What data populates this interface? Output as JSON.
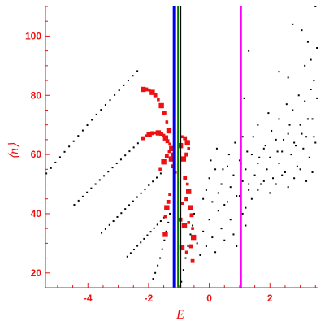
{
  "chart_data": {
    "type": "scatter",
    "xlabel": "E",
    "ylabel": "⟨n⟩",
    "xlim": [
      -5.4,
      3.6
    ],
    "ylim": [
      15,
      110
    ],
    "x_ticks": [
      {
        "value": -4,
        "label": "-4"
      },
      {
        "value": -2,
        "label": "-2"
      },
      {
        "value": 0,
        "label": "0"
      },
      {
        "value": 2,
        "label": "2"
      }
    ],
    "y_ticks": [
      {
        "value": 20,
        "label": "20"
      },
      {
        "value": 40,
        "label": "40"
      },
      {
        "value": 60,
        "label": "60"
      },
      {
        "value": 80,
        "label": "80"
      },
      {
        "value": 100,
        "label": "100"
      }
    ],
    "vertical_lines": [
      {
        "x": -1.15,
        "color": "#0000ee"
      },
      {
        "x": -1.03,
        "color": "#007700"
      },
      {
        "x": -0.95,
        "color": "#000000"
      },
      {
        "x": 1.05,
        "color": "#ff00ff"
      }
    ],
    "colors": {
      "axis": "#ee1111",
      "black_points": "#000000",
      "red_points": "#ee1111"
    },
    "series": [
      {
        "color": "#000000",
        "points": [
          [
            -5.37,
            53.6
          ],
          [
            -5.22,
            55.4
          ],
          [
            -5.07,
            57.3
          ],
          [
            -4.92,
            59.1
          ],
          [
            -4.77,
            60.9
          ],
          [
            -4.62,
            62.7
          ],
          [
            -4.47,
            64.5
          ],
          [
            -4.32,
            66.3
          ],
          [
            -4.17,
            68.1
          ],
          [
            -4.02,
            69.9
          ],
          [
            -3.87,
            71.7
          ],
          [
            -3.72,
            73.5
          ],
          [
            -3.57,
            75.1
          ],
          [
            -3.42,
            76.8
          ],
          [
            -3.27,
            78.4
          ],
          [
            -3.12,
            80.1
          ],
          [
            -2.97,
            81.7
          ],
          [
            -2.82,
            83.4
          ],
          [
            -2.67,
            85.0
          ],
          [
            -2.52,
            86.6
          ],
          [
            -2.37,
            88.2
          ],
          [
            -4.45,
            43.0
          ],
          [
            -4.31,
            44.4
          ],
          [
            -4.17,
            45.8
          ],
          [
            -4.03,
            47.2
          ],
          [
            -3.89,
            48.6
          ],
          [
            -3.75,
            50.0
          ],
          [
            -3.61,
            51.4
          ],
          [
            -3.47,
            52.8
          ],
          [
            -3.33,
            54.2
          ],
          [
            -3.19,
            55.6
          ],
          [
            -3.05,
            57.0
          ],
          [
            -2.91,
            58.3
          ],
          [
            -2.77,
            59.7
          ],
          [
            -2.63,
            61.1
          ],
          [
            -2.49,
            62.4
          ],
          [
            -2.35,
            63.8
          ],
          [
            -2.21,
            65.2
          ],
          [
            -3.55,
            33.5
          ],
          [
            -3.42,
            34.8
          ],
          [
            -3.29,
            36.2
          ],
          [
            -3.16,
            37.5
          ],
          [
            -3.03,
            38.9
          ],
          [
            -2.9,
            40.2
          ],
          [
            -2.77,
            41.6
          ],
          [
            -2.64,
            42.9
          ],
          [
            -2.51,
            44.2
          ],
          [
            -2.38,
            45.6
          ],
          [
            -2.25,
            46.9
          ],
          [
            -2.12,
            48.2
          ],
          [
            -1.99,
            49.6
          ],
          [
            -1.86,
            50.9
          ],
          [
            -1.73,
            52.2
          ],
          [
            -1.6,
            53.6
          ],
          [
            -2.7,
            25.5
          ],
          [
            -2.59,
            26.7
          ],
          [
            -2.48,
            27.9
          ],
          [
            -2.37,
            29.1
          ],
          [
            -2.26,
            30.3
          ],
          [
            -2.15,
            31.5
          ],
          [
            -2.04,
            32.7
          ],
          [
            -1.93,
            33.9
          ],
          [
            -1.82,
            35.1
          ],
          [
            -1.71,
            36.3
          ],
          [
            -1.6,
            37.5
          ],
          [
            -1.49,
            38.7
          ],
          [
            -1.85,
            18.0
          ],
          [
            -1.78,
            20.0
          ],
          [
            -1.7,
            22.5
          ],
          [
            -1.62,
            25.0
          ],
          [
            -1.55,
            28.0
          ],
          [
            -1.48,
            31.0
          ],
          [
            -1.42,
            34.0
          ],
          [
            -1.35,
            37.0
          ],
          [
            -1.3,
            40.0
          ],
          [
            -0.92,
            17.0
          ],
          [
            -0.85,
            21.0
          ],
          [
            -0.78,
            25.0
          ],
          [
            -0.7,
            29.0
          ],
          [
            -0.62,
            33.0
          ],
          [
            -0.55,
            36.0
          ],
          [
            -0.5,
            40.0
          ],
          [
            -0.4,
            30.0
          ],
          [
            -0.3,
            26.0
          ],
          [
            -0.2,
            34.0
          ],
          [
            -0.1,
            29.0
          ],
          [
            0.0,
            38.0
          ],
          [
            0.1,
            32.0
          ],
          [
            0.2,
            27.0
          ],
          [
            0.3,
            41.0
          ],
          [
            0.4,
            35.0
          ],
          [
            0.5,
            31.0
          ],
          [
            0.6,
            44.0
          ],
          [
            0.7,
            38.0
          ],
          [
            0.8,
            33.0
          ],
          [
            0.9,
            29.0
          ],
          [
            1.0,
            46.0
          ],
          [
            1.1,
            40.0
          ],
          [
            1.2,
            36.0
          ],
          [
            1.3,
            50.0
          ],
          [
            -0.2,
            45.0
          ],
          [
            -0.1,
            48.0
          ],
          [
            0.0,
            52.0
          ],
          [
            0.1,
            44.0
          ],
          [
            0.2,
            55.0
          ],
          [
            0.3,
            47.0
          ],
          [
            0.4,
            50.0
          ],
          [
            0.5,
            43.0
          ],
          [
            0.6,
            56.0
          ],
          [
            0.7,
            49.0
          ],
          [
            0.8,
            53.0
          ],
          [
            0.9,
            46.0
          ],
          [
            1.0,
            58.0
          ],
          [
            1.1,
            51.0
          ],
          [
            1.2,
            55.0
          ],
          [
            1.3,
            48.0
          ],
          [
            1.4,
            60.0
          ],
          [
            1.5,
            53.0
          ],
          [
            1.6,
            57.0
          ],
          [
            1.7,
            50.0
          ],
          [
            1.8,
            62.0
          ],
          [
            1.9,
            55.0
          ],
          [
            2.0,
            59.0
          ],
          [
            2.1,
            52.0
          ],
          [
            2.2,
            65.0
          ],
          [
            2.3,
            57.0
          ],
          [
            2.4,
            61.0
          ],
          [
            2.5,
            54.0
          ],
          [
            2.6,
            67.0
          ],
          [
            2.7,
            60.0
          ],
          [
            2.8,
            64.0
          ],
          [
            2.9,
            56.0
          ],
          [
            3.0,
            70.0
          ],
          [
            3.1,
            62.0
          ],
          [
            3.2,
            66.0
          ],
          [
            3.3,
            59.0
          ],
          [
            3.4,
            72.0
          ],
          [
            3.5,
            64.0
          ],
          [
            0.05,
            58.0
          ],
          [
            0.25,
            62.0
          ],
          [
            0.45,
            55.0
          ],
          [
            0.65,
            60.0
          ],
          [
            0.85,
            64.0
          ],
          [
            1.05,
            57.0
          ],
          [
            1.25,
            61.0
          ],
          [
            1.45,
            66.0
          ],
          [
            1.65,
            59.0
          ],
          [
            1.85,
            63.0
          ],
          [
            2.05,
            68.0
          ],
          [
            2.25,
            61.0
          ],
          [
            2.45,
            65.0
          ],
          [
            2.65,
            70.0
          ],
          [
            2.85,
            63.0
          ],
          [
            3.05,
            67.0
          ],
          [
            3.25,
            72.0
          ],
          [
            3.45,
            66.0
          ],
          [
            1.2,
            42.0
          ],
          [
            1.4,
            45.0
          ],
          [
            1.6,
            48.0
          ],
          [
            1.8,
            51.0
          ],
          [
            2.0,
            47.0
          ],
          [
            2.2,
            50.0
          ],
          [
            2.4,
            53.0
          ],
          [
            2.6,
            49.0
          ],
          [
            2.8,
            52.0
          ],
          [
            3.0,
            55.0
          ],
          [
            3.2,
            51.0
          ],
          [
            3.4,
            54.0
          ],
          [
            1.1,
            66.0
          ],
          [
            1.6,
            70.0
          ],
          [
            1.95,
            74.0
          ],
          [
            2.3,
            72.0
          ],
          [
            2.55,
            77.0
          ],
          [
            2.75,
            75.0
          ],
          [
            2.95,
            80.0
          ],
          [
            3.15,
            78.0
          ],
          [
            3.35,
            82.0
          ],
          [
            3.55,
            79.0
          ],
          [
            1.15,
            79.0
          ],
          [
            2.3,
            88.0
          ],
          [
            2.6,
            86.0
          ],
          [
            3.15,
            90.0
          ],
          [
            3.35,
            92.0
          ],
          [
            3.45,
            85.0
          ],
          [
            3.55,
            96.0
          ],
          [
            2.75,
            104.0
          ],
          [
            3.05,
            102.0
          ],
          [
            3.25,
            98.0
          ],
          [
            3.5,
            110.0
          ],
          [
            1.3,
            95.0
          ]
        ]
      },
      {
        "color": "#ee1111",
        "points": [
          [
            -2.18,
            82.0
          ],
          [
            -2.08,
            82.0
          ],
          [
            -1.98,
            81.8
          ],
          [
            -1.88,
            81.0
          ],
          [
            -1.78,
            80.0
          ],
          [
            -1.68,
            78.5
          ],
          [
            -1.58,
            76.5
          ],
          [
            -1.48,
            74.0
          ],
          [
            -1.4,
            71.0
          ],
          [
            -1.33,
            68.0
          ],
          [
            -2.18,
            65.5
          ],
          [
            -2.08,
            66.3
          ],
          [
            -1.98,
            66.8
          ],
          [
            -1.88,
            67.2
          ],
          [
            -1.78,
            67.3
          ],
          [
            -1.68,
            67.3
          ],
          [
            -1.58,
            67.0
          ],
          [
            -1.5,
            66.5
          ],
          [
            -1.44,
            65.6
          ],
          [
            -1.38,
            64.5
          ],
          [
            -1.3,
            63.5
          ],
          [
            -1.24,
            62.0
          ],
          [
            -1.2,
            60.0
          ],
          [
            -1.62,
            55.0
          ],
          [
            -1.5,
            57.5
          ],
          [
            -1.4,
            59.5
          ],
          [
            -1.32,
            61.0
          ],
          [
            -1.25,
            58.5
          ],
          [
            -1.2,
            56.0
          ],
          [
            -1.12,
            54.0
          ],
          [
            -0.85,
            58.5
          ],
          [
            -0.75,
            60.0
          ],
          [
            -0.68,
            62.0
          ],
          [
            -0.72,
            64.0
          ],
          [
            -0.8,
            65.5
          ],
          [
            -0.9,
            66.0
          ],
          [
            -0.95,
            63.0
          ],
          [
            -0.8,
            52.0
          ],
          [
            -0.72,
            50.0
          ],
          [
            -0.68,
            47.5
          ],
          [
            -0.75,
            45.0
          ],
          [
            -0.88,
            43.5
          ],
          [
            -0.62,
            42.0
          ],
          [
            -0.58,
            39.5
          ],
          [
            -0.68,
            37.0
          ],
          [
            -0.82,
            36.0
          ],
          [
            -0.95,
            38.0
          ],
          [
            -0.55,
            35.0
          ],
          [
            -0.52,
            32.0
          ],
          [
            -0.6,
            29.0
          ],
          [
            -0.75,
            27.0
          ],
          [
            -0.9,
            28.5
          ],
          [
            -0.55,
            24.0
          ],
          [
            -1.45,
            39.0
          ],
          [
            -1.4,
            42.0
          ],
          [
            -1.35,
            44.0
          ],
          [
            -1.3,
            46.5
          ],
          [
            -1.45,
            33.0
          ]
        ]
      }
    ]
  }
}
